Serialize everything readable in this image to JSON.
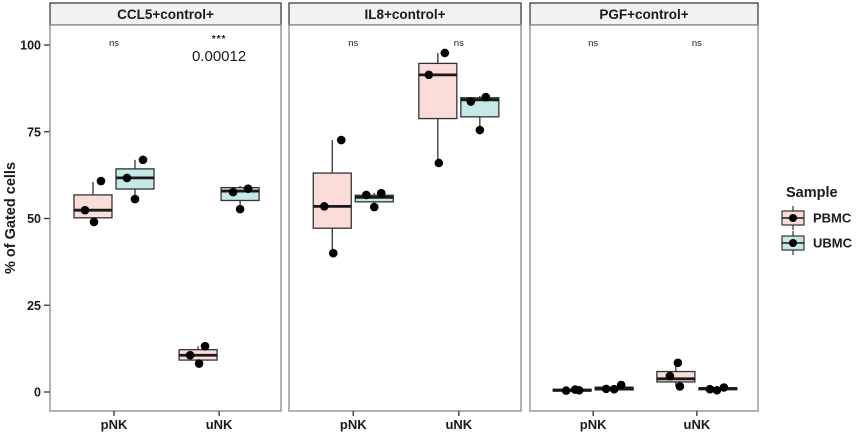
{
  "figure": {
    "ylabel": "% of Gated cells",
    "legend": {
      "title": "Sample",
      "items": [
        {
          "label": "PBMC",
          "color": "#fadcd9"
        },
        {
          "label": "UBMC",
          "color": "#c7e9e5"
        }
      ]
    }
  },
  "chart_data": {
    "type": "boxplot",
    "title": "",
    "xlabel": "",
    "ylabel": "% of Gated cells",
    "ylim": [
      -5,
      105
    ],
    "yticks": [
      0,
      25,
      50,
      75,
      100
    ],
    "categories": [
      "pNK",
      "uNK"
    ],
    "series_names": [
      "PBMC",
      "UBMC"
    ],
    "legend_title": "Sample",
    "legend_position": "right",
    "grid": false,
    "colors": {
      "PBMC": "#fadcd9",
      "UBMC": "#c7e9e5",
      "point": "#000000",
      "box_stroke": "#333333",
      "median": "#1a1a1a",
      "strip_bg": "#f2f2f2",
      "strip_border": "#3c3c3c",
      "panel_border": "#8a8a8a",
      "axis": "#333333"
    },
    "panels": [
      {
        "title": "CCL5+control+",
        "annotations": [
          {
            "category": "pNK",
            "text": "ns"
          },
          {
            "category": "uNK",
            "text": "***",
            "subtext": "0.00012"
          }
        ],
        "boxes": [
          {
            "category": "pNK",
            "sample": "PBMC",
            "low": 49,
            "q1": 50.2,
            "median": 52.4,
            "q3": 56.8,
            "high": 60.5,
            "points": [
              {
                "dx": 8,
                "v": 60.8
              },
              {
                "dx": -8,
                "v": 52.4
              },
              {
                "dx": 1,
                "v": 49
              }
            ]
          },
          {
            "category": "pNK",
            "sample": "UBMC",
            "low": 55.6,
            "q1": 58.5,
            "median": 61.7,
            "q3": 64.3,
            "high": 66.9,
            "points": [
              {
                "dx": 8,
                "v": 66.9
              },
              {
                "dx": -8,
                "v": 61.7
              },
              {
                "dx": 0,
                "v": 55.6
              }
            ]
          },
          {
            "category": "uNK",
            "sample": "PBMC",
            "low": 8.2,
            "q1": 9.2,
            "median": 10.6,
            "q3": 12.2,
            "high": 13.2,
            "points": [
              {
                "dx": 7,
                "v": 13.2
              },
              {
                "dx": -8,
                "v": 10.6
              },
              {
                "dx": 1,
                "v": 8.2
              }
            ]
          },
          {
            "category": "uNK",
            "sample": "UBMC",
            "low": 52.7,
            "q1": 55.2,
            "median": 57.9,
            "q3": 58.9,
            "high": 59.4,
            "points": [
              {
                "dx": -7,
                "v": 57.6
              },
              {
                "dx": 8,
                "v": 58.6
              },
              {
                "dx": 0,
                "v": 52.7
              }
            ]
          }
        ]
      },
      {
        "title": "IL8+control+",
        "annotations": [
          {
            "category": "pNK",
            "text": "ns"
          },
          {
            "category": "uNK",
            "text": "ns"
          }
        ],
        "boxes": [
          {
            "category": "pNK",
            "sample": "PBMC",
            "low": 40,
            "q1": 47.2,
            "median": 53.5,
            "q3": 63.1,
            "high": 72.6,
            "points": [
              {
                "dx": 9,
                "v": 72.6
              },
              {
                "dx": -8,
                "v": 53.5
              },
              {
                "dx": 1,
                "v": 40
              }
            ]
          },
          {
            "category": "pNK",
            "sample": "UBMC",
            "low": 53.3,
            "q1": 54.8,
            "median": 56.1,
            "q3": 56.7,
            "high": 57.4,
            "points": [
              {
                "dx": -8,
                "v": 56.8
              },
              {
                "dx": 7,
                "v": 57.3
              },
              {
                "dx": 0,
                "v": 53.3
              }
            ]
          },
          {
            "category": "uNK",
            "sample": "PBMC",
            "low": 66,
            "q1": 78.8,
            "median": 91.4,
            "q3": 94.7,
            "high": 97.7,
            "points": [
              {
                "dx": 7,
                "v": 97.7
              },
              {
                "dx": -9,
                "v": 91.4
              },
              {
                "dx": 1,
                "v": 66
              }
            ]
          },
          {
            "category": "uNK",
            "sample": "UBMC",
            "low": 75.5,
            "q1": 79.3,
            "median": 84.2,
            "q3": 84.8,
            "high": 85.3,
            "points": [
              {
                "dx": 6,
                "v": 85
              },
              {
                "dx": -9,
                "v": 83.7
              },
              {
                "dx": 0,
                "v": 75.5
              }
            ]
          }
        ]
      },
      {
        "title": "PGF+control+",
        "annotations": [
          {
            "category": "pNK",
            "text": "ns"
          },
          {
            "category": "uNK",
            "text": "ns"
          }
        ],
        "boxes": [
          {
            "category": "pNK",
            "sample": "PBMC",
            "low": 0.1,
            "q1": 0.25,
            "median": 0.5,
            "q3": 0.8,
            "high": 1.0,
            "points": [
              {
                "dx": -6,
                "v": 0.4
              },
              {
                "dx": 3,
                "v": 0.7
              },
              {
                "dx": 7,
                "v": 0.5
              }
            ]
          },
          {
            "category": "pNK",
            "sample": "UBMC",
            "low": 0.4,
            "q1": 0.6,
            "median": 1.0,
            "q3": 1.4,
            "high": 2.0,
            "points": [
              {
                "dx": -8,
                "v": 0.9
              },
              {
                "dx": 0,
                "v": 0.8
              },
              {
                "dx": 7,
                "v": 2.0
              }
            ]
          },
          {
            "category": "uNK",
            "sample": "PBMC",
            "low": 1.6,
            "q1": 2.9,
            "median": 3.8,
            "q3": 5.9,
            "high": 8.5,
            "points": [
              {
                "dx": 2,
                "v": 8.4
              },
              {
                "dx": -6,
                "v": 4.6
              },
              {
                "dx": 4,
                "v": 1.6
              }
            ]
          },
          {
            "category": "uNK",
            "sample": "UBMC",
            "low": 0.4,
            "q1": 0.65,
            "median": 0.95,
            "q3": 1.25,
            "high": 1.6,
            "points": [
              {
                "dx": -8,
                "v": 0.8
              },
              {
                "dx": -1,
                "v": 0.5
              },
              {
                "dx": 6,
                "v": 1.3
              }
            ]
          }
        ]
      }
    ]
  }
}
